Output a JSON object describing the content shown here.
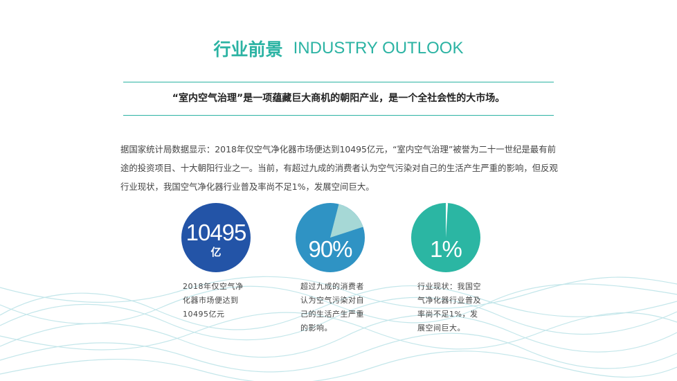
{
  "header": {
    "title_cn": "行业前景",
    "title_en": "INDUSTRY OUTLOOK"
  },
  "slogan": "“室内空气治理”是一项蕴藏巨大商机的朝阳产业，是一个全社会性的大市场。",
  "paragraph": "据国家统计局数据显示：2018年仅空气净化器市场便达到10495亿元，“室内空气治理”被誉为二十一世纪是最有前途的投资项目、十大朝阳行业之一。当前，有超过九成的消费者认为空气污染对自己的生活产生严重的影响，但反观行业现状，我国空气净化器行业普及率尚不足1%，发展空间巨大。",
  "stats": [
    {
      "value": "10495",
      "unit": "亿",
      "caption": "2018年仅空气净化器市场便达到10495亿元",
      "color": "#2354a7"
    },
    {
      "value": "90%",
      "fraction": 0.9,
      "caption": "超过九成的消费者认为空气污染对自己的生活产生严重的影响。",
      "color": "#2f93c4",
      "light_color": "#a6d8d6"
    },
    {
      "value": "1%",
      "fraction": 0.01,
      "caption": "行业现状：我国空气净化器行业普及率尚不足1%，发展空间巨大。",
      "color": "#2bb6a3",
      "light_color": "#ffffff"
    }
  ],
  "colors": {
    "accent": "#2bb3a3",
    "wave": "#bfe4e8"
  }
}
